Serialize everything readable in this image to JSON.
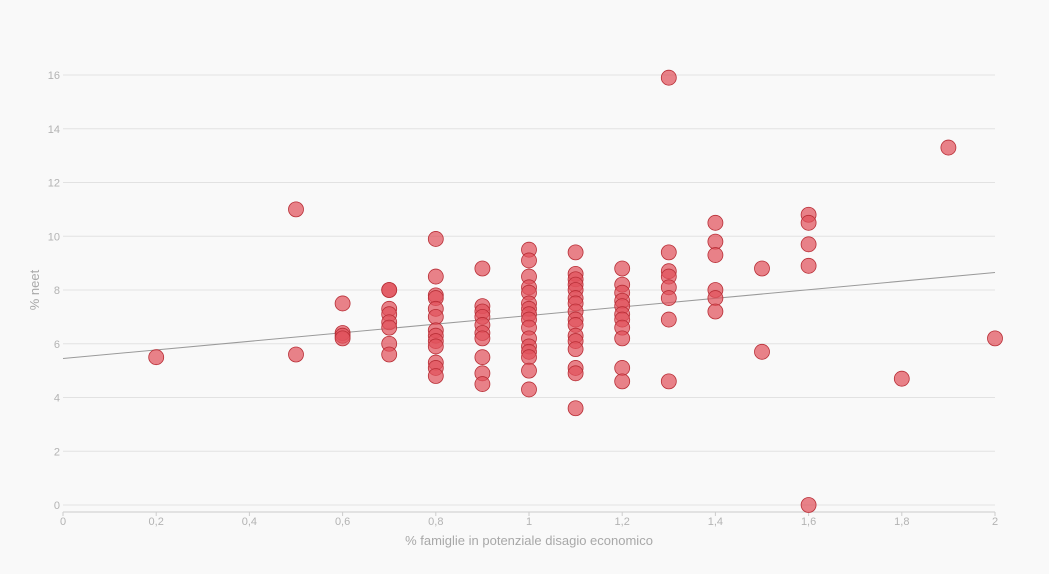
{
  "chart_data": {
    "type": "scatter",
    "title": "",
    "xlabel": "% famiglie in potenziale disagio economico",
    "ylabel": "% neet",
    "xlim": [
      0,
      2
    ],
    "ylim": [
      0,
      16
    ],
    "x_ticks": [
      0,
      0.2,
      0.4,
      0.6,
      0.8,
      1,
      1.2,
      1.4,
      1.6,
      1.8,
      2
    ],
    "x_tick_labels": [
      "0",
      "0,2",
      "0,4",
      "0,6",
      "0,8",
      "1",
      "1,2",
      "1,4",
      "1,6",
      "1,8",
      "2"
    ],
    "y_ticks": [
      0,
      2,
      4,
      6,
      8,
      10,
      12,
      14,
      16
    ],
    "y_tick_labels": [
      "0",
      "2",
      "4",
      "6",
      "8",
      "10",
      "12",
      "14",
      "16"
    ],
    "grid": true,
    "trendline": {
      "x": [
        0,
        2
      ],
      "y": [
        5.45,
        8.65
      ]
    },
    "colors": {
      "point_fill": "#e1525b",
      "point_stroke": "#b82e36",
      "trend": "#9a9a9a",
      "grid": "#e2e2e2"
    },
    "points": [
      {
        "x": 0.2,
        "y": 5.5
      },
      {
        "x": 0.5,
        "y": 11.0
      },
      {
        "x": 0.5,
        "y": 5.6
      },
      {
        "x": 0.6,
        "y": 7.5
      },
      {
        "x": 0.6,
        "y": 6.4
      },
      {
        "x": 0.6,
        "y": 6.3
      },
      {
        "x": 0.6,
        "y": 6.2
      },
      {
        "x": 0.7,
        "y": 8.0
      },
      {
        "x": 0.7,
        "y": 8.0
      },
      {
        "x": 0.7,
        "y": 7.3
      },
      {
        "x": 0.7,
        "y": 7.1
      },
      {
        "x": 0.7,
        "y": 6.8
      },
      {
        "x": 0.7,
        "y": 6.6
      },
      {
        "x": 0.7,
        "y": 6.0
      },
      {
        "x": 0.7,
        "y": 5.6
      },
      {
        "x": 0.8,
        "y": 9.9
      },
      {
        "x": 0.8,
        "y": 8.5
      },
      {
        "x": 0.8,
        "y": 7.8
      },
      {
        "x": 0.8,
        "y": 7.7
      },
      {
        "x": 0.8,
        "y": 7.3
      },
      {
        "x": 0.8,
        "y": 7.0
      },
      {
        "x": 0.8,
        "y": 6.5
      },
      {
        "x": 0.8,
        "y": 6.3
      },
      {
        "x": 0.8,
        "y": 6.1
      },
      {
        "x": 0.8,
        "y": 5.9
      },
      {
        "x": 0.8,
        "y": 5.3
      },
      {
        "x": 0.8,
        "y": 5.1
      },
      {
        "x": 0.8,
        "y": 4.8
      },
      {
        "x": 0.9,
        "y": 8.8
      },
      {
        "x": 0.9,
        "y": 7.4
      },
      {
        "x": 0.9,
        "y": 7.2
      },
      {
        "x": 0.9,
        "y": 7.0
      },
      {
        "x": 0.9,
        "y": 6.7
      },
      {
        "x": 0.9,
        "y": 6.4
      },
      {
        "x": 0.9,
        "y": 6.2
      },
      {
        "x": 0.9,
        "y": 5.5
      },
      {
        "x": 0.9,
        "y": 4.9
      },
      {
        "x": 0.9,
        "y": 4.5
      },
      {
        "x": 1.0,
        "y": 9.5
      },
      {
        "x": 1.0,
        "y": 9.1
      },
      {
        "x": 1.0,
        "y": 8.5
      },
      {
        "x": 1.0,
        "y": 8.1
      },
      {
        "x": 1.0,
        "y": 7.9
      },
      {
        "x": 1.0,
        "y": 7.5
      },
      {
        "x": 1.0,
        "y": 7.3
      },
      {
        "x": 1.0,
        "y": 7.1
      },
      {
        "x": 1.0,
        "y": 6.9
      },
      {
        "x": 1.0,
        "y": 6.6
      },
      {
        "x": 1.0,
        "y": 6.2
      },
      {
        "x": 1.0,
        "y": 5.9
      },
      {
        "x": 1.0,
        "y": 5.7
      },
      {
        "x": 1.0,
        "y": 5.5
      },
      {
        "x": 1.0,
        "y": 5.0
      },
      {
        "x": 1.0,
        "y": 4.3
      },
      {
        "x": 1.1,
        "y": 9.4
      },
      {
        "x": 1.1,
        "y": 8.6
      },
      {
        "x": 1.1,
        "y": 8.4
      },
      {
        "x": 1.1,
        "y": 8.2
      },
      {
        "x": 1.1,
        "y": 8.0
      },
      {
        "x": 1.1,
        "y": 7.7
      },
      {
        "x": 1.1,
        "y": 7.5
      },
      {
        "x": 1.1,
        "y": 7.2
      },
      {
        "x": 1.1,
        "y": 6.9
      },
      {
        "x": 1.1,
        "y": 6.7
      },
      {
        "x": 1.1,
        "y": 6.3
      },
      {
        "x": 1.1,
        "y": 6.1
      },
      {
        "x": 1.1,
        "y": 5.8
      },
      {
        "x": 1.1,
        "y": 5.1
      },
      {
        "x": 1.1,
        "y": 4.9
      },
      {
        "x": 1.1,
        "y": 3.6
      },
      {
        "x": 1.2,
        "y": 8.8
      },
      {
        "x": 1.2,
        "y": 8.2
      },
      {
        "x": 1.2,
        "y": 7.9
      },
      {
        "x": 1.2,
        "y": 7.6
      },
      {
        "x": 1.2,
        "y": 7.4
      },
      {
        "x": 1.2,
        "y": 7.1
      },
      {
        "x": 1.2,
        "y": 6.9
      },
      {
        "x": 1.2,
        "y": 6.6
      },
      {
        "x": 1.2,
        "y": 6.2
      },
      {
        "x": 1.2,
        "y": 5.1
      },
      {
        "x": 1.2,
        "y": 4.6
      },
      {
        "x": 1.3,
        "y": 15.9
      },
      {
        "x": 1.3,
        "y": 9.4
      },
      {
        "x": 1.3,
        "y": 8.7
      },
      {
        "x": 1.3,
        "y": 8.5
      },
      {
        "x": 1.3,
        "y": 8.1
      },
      {
        "x": 1.3,
        "y": 7.7
      },
      {
        "x": 1.3,
        "y": 6.9
      },
      {
        "x": 1.3,
        "y": 4.6
      },
      {
        "x": 1.4,
        "y": 10.5
      },
      {
        "x": 1.4,
        "y": 9.8
      },
      {
        "x": 1.4,
        "y": 9.3
      },
      {
        "x": 1.4,
        "y": 8.0
      },
      {
        "x": 1.4,
        "y": 7.7
      },
      {
        "x": 1.4,
        "y": 7.2
      },
      {
        "x": 1.5,
        "y": 8.8
      },
      {
        "x": 1.5,
        "y": 5.7
      },
      {
        "x": 1.6,
        "y": 10.8
      },
      {
        "x": 1.6,
        "y": 10.5
      },
      {
        "x": 1.6,
        "y": 9.7
      },
      {
        "x": 1.6,
        "y": 8.9
      },
      {
        "x": 1.6,
        "y": 0.0
      },
      {
        "x": 1.8,
        "y": 4.7
      },
      {
        "x": 1.9,
        "y": 13.3
      },
      {
        "x": 2.0,
        "y": 6.2
      }
    ]
  }
}
